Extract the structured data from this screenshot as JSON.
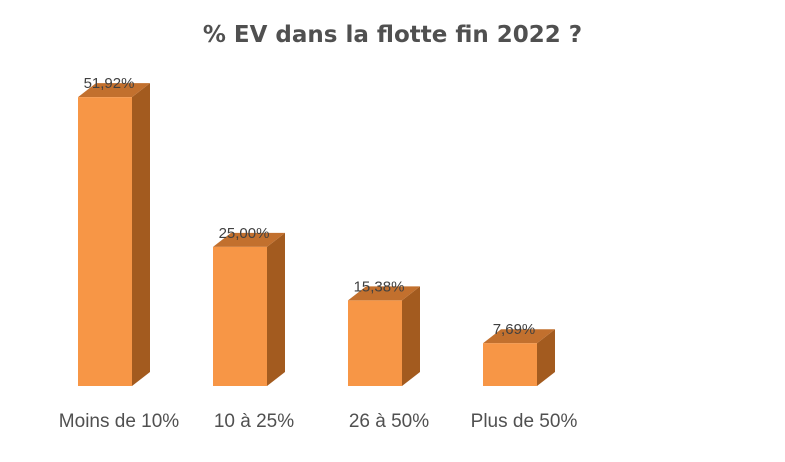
{
  "chart_data": {
    "type": "bar",
    "title": "% EV dans la flotte fin 2022 ?",
    "categories": [
      "Moins de 10%",
      "10 à 25%",
      "26 à 50%",
      "Plus de 50%"
    ],
    "values": [
      51.92,
      25.0,
      15.38,
      7.69
    ],
    "value_labels": [
      "51,92%",
      "25,00%",
      "15,38%",
      "7,69%"
    ],
    "xlabel": "",
    "ylabel": "",
    "ylim": [
      0,
      55
    ],
    "grid": false,
    "legend": "none",
    "style": "3d-column",
    "colors": {
      "front": "#f79646",
      "side": "#a35b1f",
      "top": "#c2702e"
    }
  }
}
